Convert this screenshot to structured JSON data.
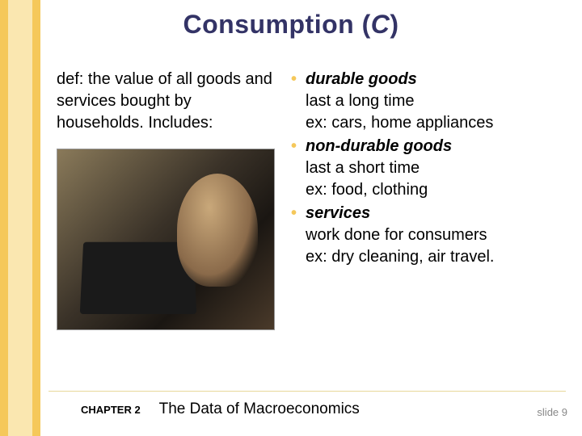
{
  "title_consumption": "Consumption (",
  "title_c": "C",
  "title_close": ")",
  "def": "def:  the value of all goods and services bought by households.  Includes:",
  "bullets": [
    {
      "term": "durable goods",
      "desc": "last a long time\nex:  cars, home appliances"
    },
    {
      "term": "non-durable goods",
      "desc": "last a short time\nex:  food, clothing"
    },
    {
      "term": "services",
      "desc": "work done for consumers\nex:  dry cleaning, air travel."
    }
  ],
  "footer_chapter": "CHAPTER 2",
  "footer_title": "The Data of Macroeconomics",
  "slide_num": "slide 9",
  "colors": {
    "accent_bar": "#f5c85a",
    "accent_bar_light": "#fae7b0",
    "title_color": "#333366",
    "bullet_color": "#f5c85a",
    "text_color": "#000000",
    "slide_num_color": "#888888",
    "background": "#ffffff"
  }
}
